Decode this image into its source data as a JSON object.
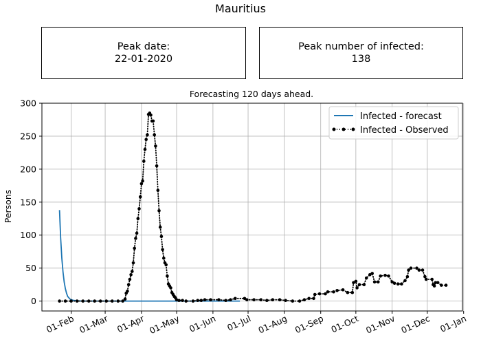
{
  "figure": {
    "title": "Mauritius",
    "peak_date_label": "Peak date:",
    "peak_date_value": "22-01-2020",
    "peak_count_label": "Peak number of infected:",
    "peak_count_value": "138"
  },
  "chart_data": {
    "type": "line",
    "title": "Forecasting 120 days ahead.",
    "xlabel": "",
    "ylabel": "Persons",
    "x_axis_type": "date",
    "xlim": [
      "2020-01-07",
      "2020-12-31"
    ],
    "ylim": [
      -15,
      300
    ],
    "x_ticks": [
      {
        "date": "2020-02-01",
        "label": "01-Feb"
      },
      {
        "date": "2020-03-01",
        "label": "01-Mar"
      },
      {
        "date": "2020-04-01",
        "label": "01-Apr"
      },
      {
        "date": "2020-05-01",
        "label": "01-May"
      },
      {
        "date": "2020-06-01",
        "label": "01-Jun"
      },
      {
        "date": "2020-07-01",
        "label": "01-Jul"
      },
      {
        "date": "2020-08-01",
        "label": "01-Aug"
      },
      {
        "date": "2020-09-01",
        "label": "01-Sep"
      },
      {
        "date": "2020-10-01",
        "label": "01-Oct"
      },
      {
        "date": "2020-11-01",
        "label": "01-Nov"
      },
      {
        "date": "2020-12-01",
        "label": "01-Dec"
      },
      {
        "date": "2021-01-01",
        "label": "01-Jan"
      }
    ],
    "y_ticks": [
      0,
      50,
      100,
      150,
      200,
      250,
      300
    ],
    "grid": true,
    "legend_position": "top-right",
    "colors": {
      "forecast": "#1f77b4",
      "observed": "#000000",
      "grid": "#b0b0b0"
    },
    "series": [
      {
        "name": "Infected - forecast",
        "style": "solid line",
        "points": [
          [
            "2020-01-22",
            138
          ],
          [
            "2020-01-23",
            95
          ],
          [
            "2020-01-24",
            65
          ],
          [
            "2020-01-25",
            44
          ],
          [
            "2020-01-26",
            29
          ],
          [
            "2020-01-27",
            19
          ],
          [
            "2020-01-28",
            12
          ],
          [
            "2020-01-29",
            7
          ],
          [
            "2020-01-31",
            3
          ],
          [
            "2020-02-03",
            1
          ],
          [
            "2020-02-10",
            0
          ],
          [
            "2020-06-24",
            0
          ]
        ]
      },
      {
        "name": "Infected - Observed",
        "style": "dotted line with point markers",
        "points": [
          [
            "2020-01-22",
            0
          ],
          [
            "2020-01-27",
            0
          ],
          [
            "2020-02-01",
            0
          ],
          [
            "2020-02-06",
            0
          ],
          [
            "2020-02-11",
            0
          ],
          [
            "2020-02-16",
            0
          ],
          [
            "2020-02-21",
            0
          ],
          [
            "2020-02-26",
            0
          ],
          [
            "2020-03-02",
            0
          ],
          [
            "2020-03-07",
            0
          ],
          [
            "2020-03-12",
            0
          ],
          [
            "2020-03-16",
            0
          ],
          [
            "2020-03-18",
            3
          ],
          [
            "2020-03-19",
            12
          ],
          [
            "2020-03-20",
            15
          ],
          [
            "2020-03-21",
            25
          ],
          [
            "2020-03-22",
            33
          ],
          [
            "2020-03-23",
            40
          ],
          [
            "2020-03-24",
            45
          ],
          [
            "2020-03-25",
            58
          ],
          [
            "2020-03-26",
            80
          ],
          [
            "2020-03-27",
            95
          ],
          [
            "2020-03-28",
            103
          ],
          [
            "2020-03-29",
            125
          ],
          [
            "2020-03-30",
            140
          ],
          [
            "2020-03-31",
            158
          ],
          [
            "2020-04-01",
            178
          ],
          [
            "2020-04-02",
            182
          ],
          [
            "2020-04-03",
            212
          ],
          [
            "2020-04-04",
            230
          ],
          [
            "2020-04-05",
            245
          ],
          [
            "2020-04-06",
            252
          ],
          [
            "2020-04-07",
            283
          ],
          [
            "2020-04-08",
            285
          ],
          [
            "2020-04-09",
            282
          ],
          [
            "2020-04-10",
            273
          ],
          [
            "2020-04-11",
            273
          ],
          [
            "2020-04-12",
            252
          ],
          [
            "2020-04-13",
            235
          ],
          [
            "2020-04-14",
            205
          ],
          [
            "2020-04-15",
            168
          ],
          [
            "2020-04-16",
            137
          ],
          [
            "2020-04-17",
            112
          ],
          [
            "2020-04-18",
            98
          ],
          [
            "2020-04-19",
            78
          ],
          [
            "2020-04-20",
            65
          ],
          [
            "2020-04-21",
            58
          ],
          [
            "2020-04-22",
            55
          ],
          [
            "2020-04-23",
            38
          ],
          [
            "2020-04-24",
            26
          ],
          [
            "2020-04-25",
            23
          ],
          [
            "2020-04-26",
            20
          ],
          [
            "2020-04-27",
            13
          ],
          [
            "2020-04-28",
            10
          ],
          [
            "2020-04-29",
            7
          ],
          [
            "2020-04-30",
            5
          ],
          [
            "2020-05-01",
            2
          ],
          [
            "2020-05-03",
            1
          ],
          [
            "2020-05-06",
            1
          ],
          [
            "2020-05-09",
            0
          ],
          [
            "2020-05-15",
            0
          ],
          [
            "2020-05-19",
            1
          ],
          [
            "2020-05-22",
            1
          ],
          [
            "2020-05-25",
            2
          ],
          [
            "2020-05-30",
            2
          ],
          [
            "2020-06-06",
            2
          ],
          [
            "2020-06-12",
            1
          ],
          [
            "2020-06-16",
            2
          ],
          [
            "2020-06-20",
            4
          ],
          [
            "2020-06-28",
            4
          ],
          [
            "2020-06-30",
            2
          ],
          [
            "2020-07-06",
            2
          ],
          [
            "2020-07-12",
            2
          ],
          [
            "2020-07-17",
            1
          ],
          [
            "2020-07-22",
            2
          ],
          [
            "2020-07-28",
            2
          ],
          [
            "2020-08-02",
            1
          ],
          [
            "2020-08-08",
            0
          ],
          [
            "2020-08-14",
            0
          ],
          [
            "2020-08-18",
            2
          ],
          [
            "2020-08-22",
            4
          ],
          [
            "2020-08-26",
            4
          ],
          [
            "2020-08-27",
            10
          ],
          [
            "2020-08-31",
            11
          ],
          [
            "2020-09-05",
            11
          ],
          [
            "2020-09-07",
            14
          ],
          [
            "2020-09-12",
            14
          ],
          [
            "2020-09-15",
            16
          ],
          [
            "2020-09-20",
            17
          ],
          [
            "2020-09-24",
            13
          ],
          [
            "2020-09-28",
            13
          ],
          [
            "2020-09-29",
            28
          ],
          [
            "2020-10-01",
            30
          ],
          [
            "2020-10-02",
            20
          ],
          [
            "2020-10-04",
            25
          ],
          [
            "2020-10-08",
            25
          ],
          [
            "2020-10-10",
            35
          ],
          [
            "2020-10-13",
            40
          ],
          [
            "2020-10-15",
            42
          ],
          [
            "2020-10-17",
            29
          ],
          [
            "2020-10-20",
            29
          ],
          [
            "2020-10-22",
            38
          ],
          [
            "2020-10-26",
            39
          ],
          [
            "2020-10-29",
            38
          ],
          [
            "2020-11-01",
            29
          ],
          [
            "2020-11-03",
            27
          ],
          [
            "2020-11-06",
            26
          ],
          [
            "2020-11-09",
            26
          ],
          [
            "2020-11-12",
            31
          ],
          [
            "2020-11-14",
            37
          ],
          [
            "2020-11-15",
            47
          ],
          [
            "2020-11-17",
            50
          ],
          [
            "2020-11-22",
            50
          ],
          [
            "2020-11-24",
            47
          ],
          [
            "2020-11-27",
            47
          ],
          [
            "2020-11-29",
            37
          ],
          [
            "2020-11-30",
            33
          ],
          [
            "2020-12-05",
            33
          ],
          [
            "2020-12-06",
            25
          ],
          [
            "2020-12-07",
            23
          ],
          [
            "2020-12-08",
            28
          ],
          [
            "2020-12-10",
            28
          ],
          [
            "2020-12-13",
            24
          ],
          [
            "2020-12-17",
            24
          ]
        ]
      }
    ]
  }
}
